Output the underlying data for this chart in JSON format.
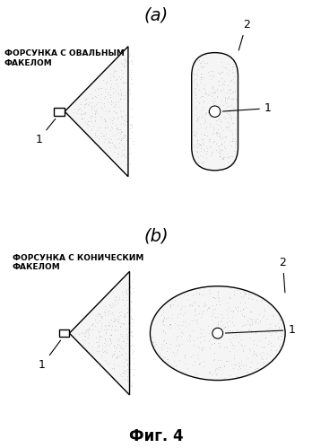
{
  "title_a": "(a)",
  "title_b": "(b)",
  "label_a": "ФОРСУНКА С ОВАЛЬНЫМ\nФАКЕЛОМ",
  "label_b": "ФОРСУНКА С КОНИЧЕСКИМ\nФАКЕЛОМ",
  "fig_label": "Фиг. 4",
  "bg_color": "#ffffff",
  "shape_edge_color": "#000000",
  "dot_color": "#555555",
  "fill_color": "#f5f5f5",
  "line_color": "#000000",
  "font_color": "#000000",
  "label1": "1",
  "label2": "2"
}
